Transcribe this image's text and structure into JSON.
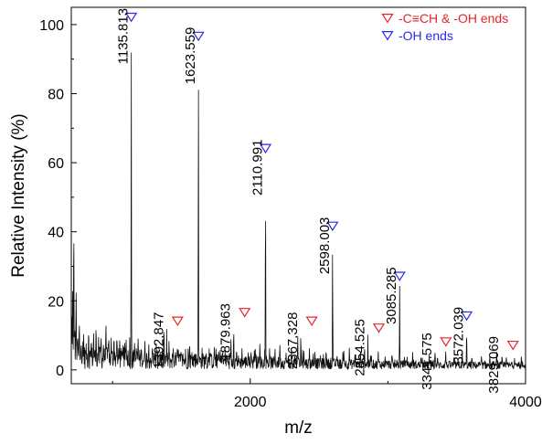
{
  "chart_data": {
    "type": "line",
    "xlabel": "m/z",
    "ylabel": "Relative Intensity (%)",
    "xlim": [
      700,
      4000
    ],
    "ylim": [
      -4,
      105
    ],
    "x_ticks": [
      2000,
      4000
    ],
    "y_ticks": [
      0,
      20,
      40,
      60,
      80,
      100
    ],
    "grid": false,
    "legend": {
      "placement": "top-right",
      "entries": [
        {
          "label": "-C≡CH & -OH ends",
          "color": "#e8242a",
          "marker": "down-triangle-open"
        },
        {
          "label": "-OH ends",
          "color": "#2a2ae8",
          "marker": "down-triangle-open"
        }
      ]
    },
    "peaks": [
      {
        "x": 1135.813,
        "y": 100,
        "label": "1135.813",
        "series": "-OH ends"
      },
      {
        "x": 1392.847,
        "y": 12,
        "label": "1392.847",
        "series": "-C≡CH & -OH ends"
      },
      {
        "x": 1623.559,
        "y": 94.5,
        "label": "1623.559",
        "series": "-OH ends"
      },
      {
        "x": 1879.963,
        "y": 14.5,
        "label": "1879.963",
        "series": "-C≡CH & -OH ends"
      },
      {
        "x": 2110.991,
        "y": 62,
        "label": "2110.991",
        "series": "-OH ends"
      },
      {
        "x": 2367.328,
        "y": 12,
        "label": "2367.328",
        "series": "-C≡CH & -OH ends"
      },
      {
        "x": 2598.003,
        "y": 39.5,
        "label": "2598.003",
        "series": "-OH ends"
      },
      {
        "x": 2854.525,
        "y": 10,
        "label": "2854.525",
        "series": "-C≡CH & -OH ends"
      },
      {
        "x": 3085.285,
        "y": 25,
        "label": "3085.285",
        "series": "-OH ends"
      },
      {
        "x": 3341.575,
        "y": 6,
        "label": "3341.575",
        "series": "-C≡CH & -OH ends"
      },
      {
        "x": 3572.039,
        "y": 13.5,
        "label": "3572.039",
        "series": "-OH ends"
      },
      {
        "x": 3829.069,
        "y": 5,
        "label": "3829.069",
        "series": "-C≡CH & -OH ends"
      }
    ],
    "background_spikes": [
      [
        703,
        18
      ],
      [
        710,
        26
      ],
      [
        718,
        46
      ],
      [
        725,
        14
      ],
      [
        735,
        24
      ],
      [
        746,
        12
      ],
      [
        758,
        16
      ],
      [
        772,
        9
      ],
      [
        790,
        11
      ],
      [
        808,
        8
      ],
      [
        826,
        13
      ],
      [
        845,
        10
      ],
      [
        862,
        12
      ],
      [
        880,
        14
      ],
      [
        898,
        9
      ],
      [
        916,
        11
      ],
      [
        934,
        8
      ],
      [
        952,
        13
      ],
      [
        970,
        10
      ],
      [
        990,
        9
      ],
      [
        1010,
        11
      ],
      [
        1030,
        8
      ],
      [
        1052,
        10
      ],
      [
        1075,
        7
      ],
      [
        1098,
        9
      ],
      [
        1160,
        8
      ],
      [
        1185,
        10
      ],
      [
        1210,
        7
      ],
      [
        1235,
        8
      ],
      [
        1262,
        6
      ],
      [
        1290,
        7
      ],
      [
        1318,
        8
      ],
      [
        1345,
        6
      ],
      [
        1372,
        11
      ],
      [
        1410,
        9
      ],
      [
        1440,
        6
      ],
      [
        1470,
        7
      ],
      [
        1500,
        5
      ],
      [
        1530,
        6
      ],
      [
        1560,
        7
      ],
      [
        1590,
        5
      ],
      [
        1650,
        6
      ],
      [
        1680,
        5
      ],
      [
        1710,
        6
      ],
      [
        1740,
        7
      ],
      [
        1770,
        5
      ],
      [
        1800,
        6
      ],
      [
        1830,
        5
      ],
      [
        1860,
        9
      ],
      [
        1900,
        5
      ],
      [
        1940,
        6
      ],
      [
        1985,
        5
      ],
      [
        2030,
        6
      ],
      [
        2070,
        8
      ],
      [
        2140,
        5
      ],
      [
        2180,
        6
      ],
      [
        2215,
        8
      ],
      [
        2260,
        5
      ],
      [
        2300,
        6
      ],
      [
        2345,
        10
      ],
      [
        2390,
        5
      ],
      [
        2430,
        6
      ],
      [
        2470,
        5
      ],
      [
        2510,
        4
      ],
      [
        2550,
        5
      ],
      [
        2630,
        4
      ],
      [
        2680,
        5
      ],
      [
        2720,
        6
      ],
      [
        2760,
        4
      ],
      [
        2800,
        5
      ],
      [
        2830,
        7
      ],
      [
        2880,
        4
      ],
      [
        2930,
        5
      ],
      [
        2980,
        4
      ],
      [
        3030,
        5
      ],
      [
        3120,
        4
      ],
      [
        3180,
        5
      ],
      [
        3240,
        4
      ],
      [
        3300,
        4
      ],
      [
        3360,
        4
      ],
      [
        3420,
        5
      ],
      [
        3480,
        4
      ],
      [
        3540,
        5
      ],
      [
        3610,
        4
      ],
      [
        3680,
        4
      ],
      [
        3740,
        4
      ],
      [
        3790,
        5
      ],
      [
        3860,
        4
      ],
      [
        3920,
        3
      ],
      [
        3970,
        4
      ]
    ]
  }
}
